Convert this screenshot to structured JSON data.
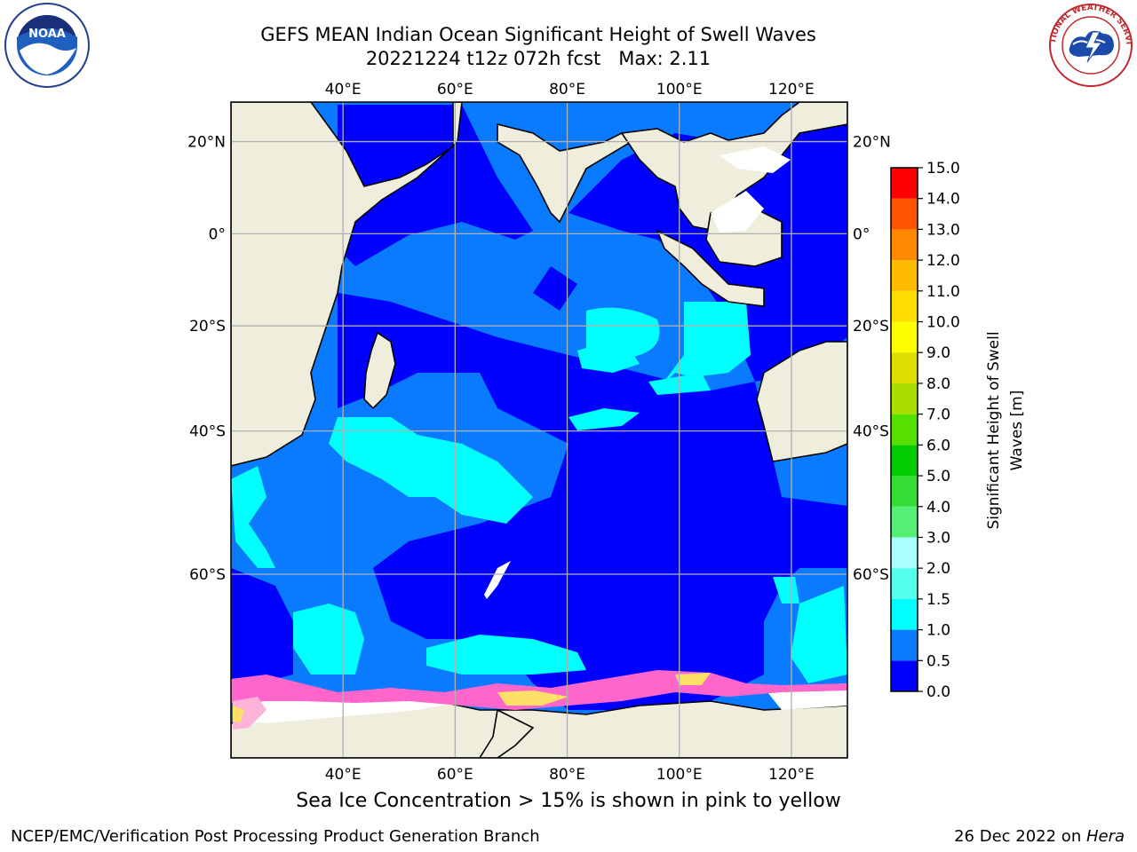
{
  "title": {
    "line1": "GEFS MEAN Indian Ocean Significant Height of Swell Waves",
    "line2": "20221224 t12z 072h fcst   Max: 2.11"
  },
  "map": {
    "lon_ticks": [
      "40°E",
      "60°E",
      "80°E",
      "100°E",
      "120°E"
    ],
    "lat_ticks": [
      "20°N",
      "0°",
      "20°S",
      "40°S",
      "60°S"
    ],
    "lon_values": [
      40,
      60,
      80,
      100,
      120
    ],
    "lat_values": [
      20,
      0,
      -20,
      -40,
      -60
    ],
    "lon_range": [
      20,
      130
    ],
    "lat_range": [
      -75,
      28
    ],
    "grid": true,
    "projection": "mercator",
    "colors": {
      "land": "#efeedd",
      "sea_ice": [
        "#ff66cc",
        "#ffe066"
      ],
      "no_data": "#ffffff"
    }
  },
  "colorbar": {
    "label_line1": "Significant Height of Swell",
    "label_line2": "Waves [m]",
    "ticks": [
      "0.0",
      "0.5",
      "1.0",
      "1.5",
      "2.0",
      "3.0",
      "4.0",
      "5.0",
      "6.0",
      "7.0",
      "8.0",
      "9.0",
      "10.0",
      "11.0",
      "12.0",
      "13.0",
      "14.0",
      "15.0"
    ],
    "colors": [
      "#0000ff",
      "#0a7bff",
      "#00ffff",
      "#55ffee",
      "#aaffff",
      "#55ee77",
      "#33dd33",
      "#00cc00",
      "#55e000",
      "#aadd00",
      "#dddd00",
      "#ffff00",
      "#ffdd00",
      "#ffbb00",
      "#ff8800",
      "#ff5500",
      "#ff0000"
    ]
  },
  "caption": "Sea Ice Concentration > 15% is shown in pink to yellow",
  "footer": {
    "left": "NCEP/EMC/Verification Post Processing Product Generation Branch",
    "right_prefix": "26 Dec 2022 on ",
    "right_host": "Hera"
  },
  "logos": {
    "noaa": "NOAA",
    "nws_ring": "NATIONAL WEATHER SERVICE"
  }
}
